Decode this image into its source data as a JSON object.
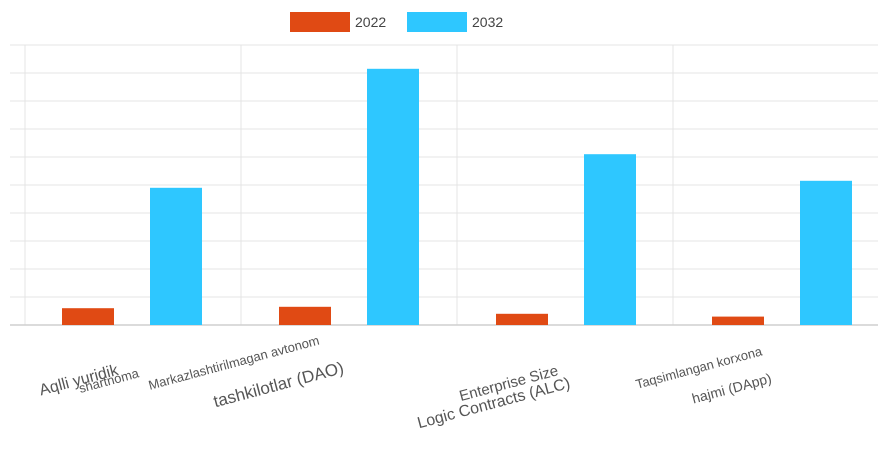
{
  "chart_data": {
    "type": "bar",
    "title": "",
    "xlabel": "",
    "ylabel": "",
    "categories": [
      [
        "Aqlli yuridik",
        "shartnoma"
      ],
      [
        "Markazlashtirilmagan avtonom",
        "tashkilotlar (DAO)"
      ],
      [
        "Enterprise Size",
        "Logic Contracts (ALC)"
      ],
      [
        "Taqsimlangan korxona",
        "hajmi (DApp)"
      ]
    ],
    "series": [
      {
        "name": "2022",
        "color": "#e04a14",
        "values": [
          0.6,
          0.65,
          0.4,
          0.3
        ]
      },
      {
        "name": "2032",
        "color": "#2ec7ff",
        "values": [
          4.9,
          9.15,
          6.1,
          5.15
        ]
      }
    ],
    "ylim": [
      0,
      10
    ],
    "grid": true,
    "legend_position": "top-center"
  }
}
